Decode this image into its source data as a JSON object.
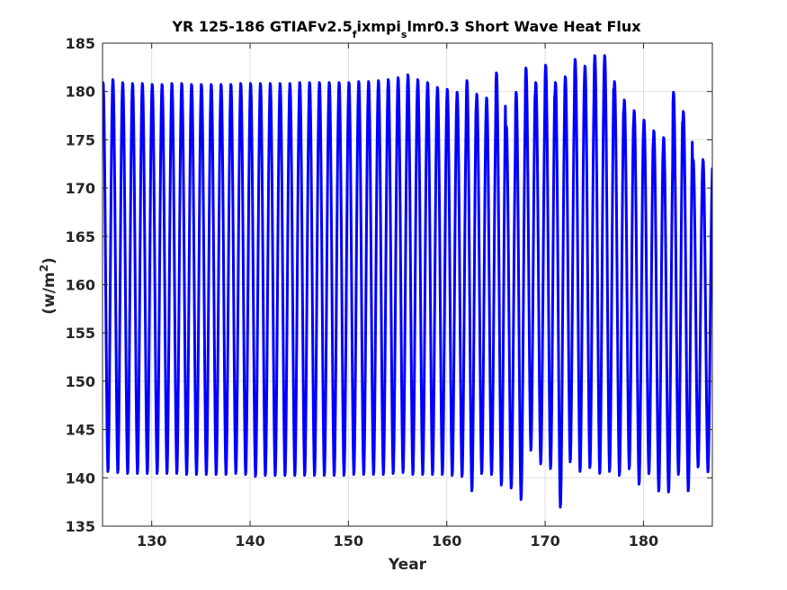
{
  "chart_data": {
    "type": "line",
    "title_main": "YR 125-186 GTIAFv2.5",
    "title_sub1": "f",
    "title_mid": "ixmpi",
    "title_sub2": "s",
    "title_end": "lmr0.3 Short Wave Heat Flux",
    "xlabel": "Year",
    "ylabel_base": "(w/m",
    "ylabel_sup": "2",
    "ylabel_end": ")",
    "xlim": [
      125,
      187
    ],
    "ylim": [
      135,
      185
    ],
    "xticks": [
      130,
      140,
      150,
      160,
      170,
      180
    ],
    "yticks": [
      135,
      140,
      145,
      150,
      155,
      160,
      165,
      170,
      175,
      180,
      185
    ],
    "grid": true,
    "series": [
      {
        "color": "#0000ff",
        "line_width": 3,
        "cycle": "annual",
        "start_year": 125,
        "end_year": 187,
        "annual_max": [
          181,
          181.3,
          181.0,
          180.9,
          180.9,
          180.8,
          180.8,
          180.9,
          180.9,
          180.8,
          180.8,
          180.8,
          180.8,
          180.8,
          180.9,
          180.9,
          180.9,
          180.9,
          180.9,
          180.9,
          181,
          181,
          181,
          181,
          181,
          181,
          181.1,
          181.1,
          181.2,
          181.3,
          181.5,
          181.8,
          181.3,
          181,
          180.5,
          180.3,
          180.0,
          181.2,
          179.8,
          179.4,
          182.0,
          176.5,
          180.0,
          182.5,
          181.0,
          182.8,
          181.0,
          181.6,
          183.4,
          182.7,
          183.8,
          183.8,
          181.1,
          179.2,
          178.1,
          177.1,
          176.0,
          175.3,
          180.0,
          178.0,
          173.0,
          173.0
        ],
        "annual_min": [
          140.5,
          140.4,
          140.3,
          140.3,
          140.3,
          140.3,
          140.3,
          140.3,
          140.2,
          140.2,
          140.2,
          140.2,
          140.2,
          140.3,
          140.2,
          140.0,
          140.1,
          140.1,
          140.1,
          140.1,
          140.1,
          140.1,
          140.1,
          140.1,
          140.1,
          140.2,
          140.2,
          140.2,
          140.2,
          140.3,
          140.4,
          140.2,
          140.2,
          140.2,
          140.2,
          140.1,
          140.0,
          138.5,
          140.3,
          140.2,
          139.1,
          138.8,
          137.6,
          142.7,
          141.3,
          140.8,
          136.8,
          141.5,
          140.5,
          140.9,
          140.3,
          140.5,
          140.1,
          140.8,
          139.2,
          140.3,
          138.5,
          138.4,
          140.2,
          138.5,
          141.0,
          140.5
        ]
      }
    ]
  }
}
